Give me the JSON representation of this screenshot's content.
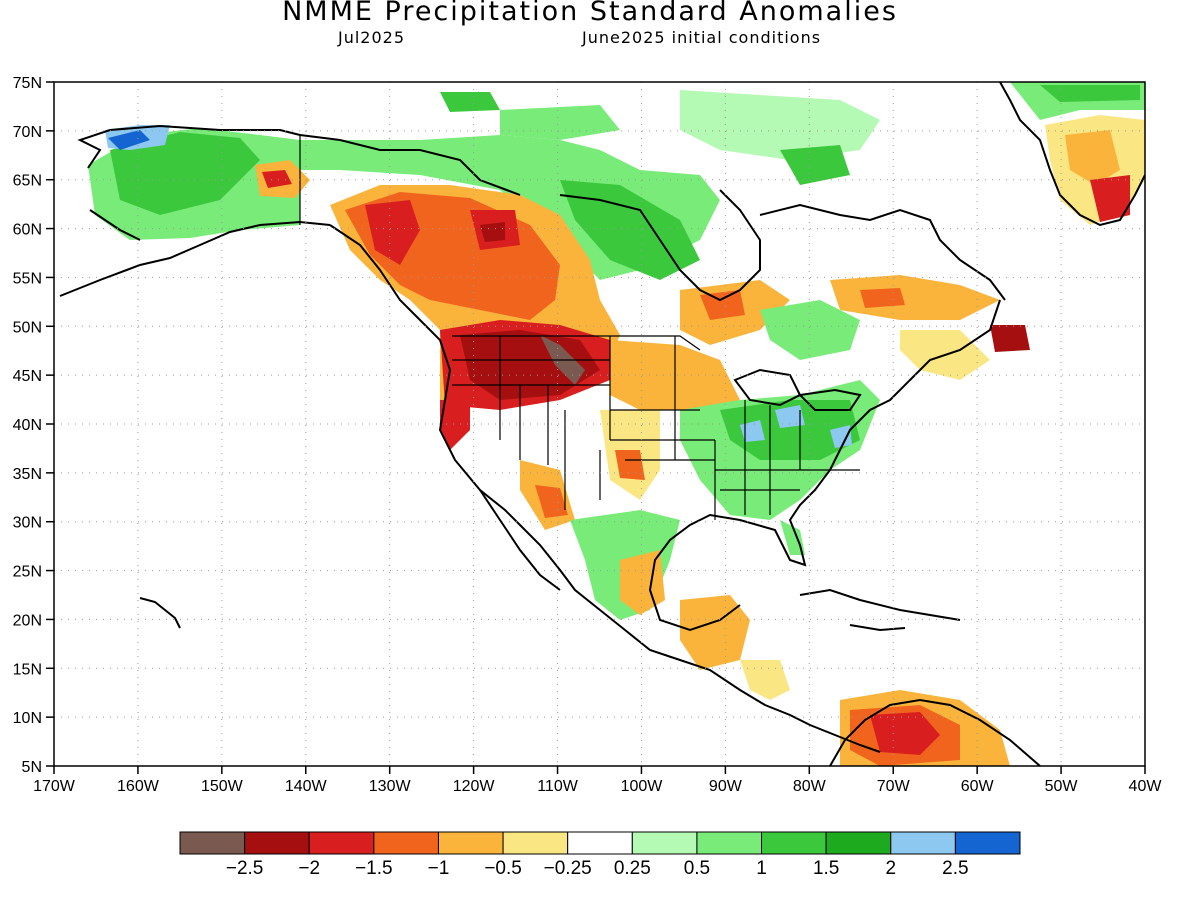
{
  "title": "NMME Precipitation Standard Anomalies",
  "subtitle_left": "Jul2025",
  "subtitle_right": "June2025 initial conditions",
  "lat_labels": [
    "75N",
    "70N",
    "65N",
    "60N",
    "55N",
    "50N",
    "45N",
    "40N",
    "35N",
    "30N",
    "25N",
    "20N",
    "15N",
    "10N",
    "5N"
  ],
  "lon_labels": [
    "170W",
    "160W",
    "150W",
    "140W",
    "130W",
    "120W",
    "110W",
    "100W",
    "90W",
    "80W",
    "70W",
    "60W",
    "50W",
    "40W"
  ],
  "map_extent": {
    "lon_min": -170,
    "lon_max": -40,
    "lat_min": 5,
    "lat_max": 75
  },
  "colorbar": {
    "colors": [
      "#7a5a50",
      "#a50f0f",
      "#d81e1e",
      "#f0641e",
      "#fab43c",
      "#fae682",
      "#ffffff",
      "#b4fab4",
      "#78eb78",
      "#3cc83c",
      "#1eaa1e",
      "#8cc8f0",
      "#1464d2"
    ],
    "labels": [
      "-2.5",
      "-2",
      "-1.5",
      "-1",
      "-0.5",
      "-0.25",
      "0.25",
      "0.5",
      "1",
      "1.5",
      "2",
      "2.5"
    ]
  },
  "colors": {
    "land_outline": "#000000",
    "grid": "#9a9a9a",
    "ocean": "#ffffff"
  }
}
